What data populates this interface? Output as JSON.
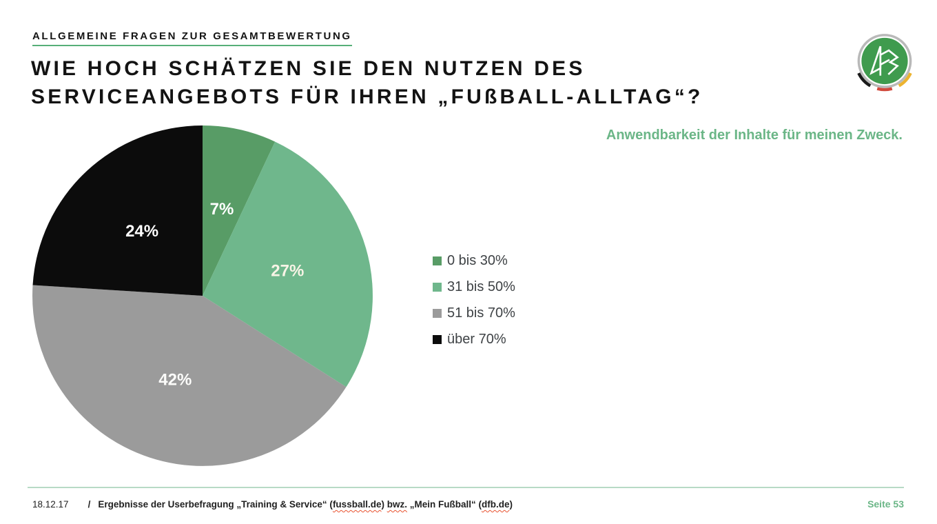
{
  "slide": {
    "kicker": "ALLGEMEINE FRAGEN ZUR GESAMTBEWERTUNG",
    "title_line1": "WIE HOCH SCHÄTZEN SIE DEN NUTZEN DES",
    "title_line2": "SERVICEANGEBOTS FÜR IHREN „FUßBALL-ALLTAG“?",
    "subtitle": "Anwendbarkeit der Inhalte für meinen Zweck."
  },
  "chart_data": {
    "type": "pie",
    "title": "Anwendbarkeit der Inhalte für meinen Zweck.",
    "categories": [
      "0 bis 30%",
      "31 bis 50%",
      "51 bis 70%",
      "über 70%"
    ],
    "values": [
      7,
      27,
      42,
      24
    ],
    "labels": [
      "7%",
      "27%",
      "42%",
      "24%"
    ],
    "unit": "%",
    "colors": [
      "#589c66",
      "#6fb78c",
      "#9b9b9b",
      "#0c0c0c"
    ],
    "label_colors": [
      "#ffffff",
      "#f8f4e6",
      "#fcfcfa",
      "#ffffff"
    ],
    "start_angle_deg": 0,
    "direction": "clockwise",
    "legend_position": "right",
    "label_radius_fraction": 0.52
  },
  "footer": {
    "date": "18.12.17",
    "separator": "/",
    "source_segments": [
      {
        "text": "Ergebnisse der Userbefragung „Training & Service“ (",
        "squiggle": false
      },
      {
        "text": "fussball.de",
        "squiggle": true
      },
      {
        "text": ") ",
        "squiggle": false
      },
      {
        "text": "bwz.",
        "squiggle": true
      },
      {
        "text": " „Mein Fußball“ (",
        "squiggle": false
      },
      {
        "text": "dfb.de",
        "squiggle": true
      },
      {
        "text": ")",
        "squiggle": false
      }
    ],
    "page_label": "Seite 53"
  },
  "theme": {
    "accent_green": "#6bb687",
    "underline_green": "#56af78",
    "rule_green": "#b7dac5",
    "squiggle_red": "#e8512d"
  }
}
